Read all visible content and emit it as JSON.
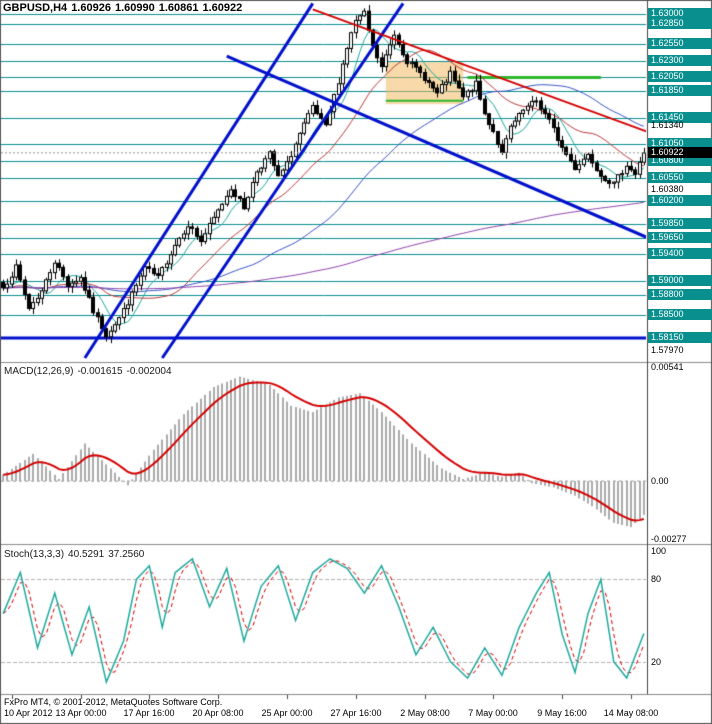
{
  "footer": {
    "text": "FxPro MT4, © 2001-2012, MetaQuotes Software Corp."
  },
  "chart_data": {
    "type": "candlestick",
    "title": "GBPUSD,H4",
    "symbol": "GBPUSD",
    "timeframe": "H4",
    "quote": {
      "open": "1.60926",
      "high": "1.60990",
      "low": "1.60861",
      "close": "1.60922"
    },
    "bid": {
      "label": "1.60922",
      "value": 1.60922
    },
    "num_candles": 150,
    "price_axis": {
      "min": 1.5782,
      "max": 1.6318
    },
    "close_anchors": [
      [
        0,
        1.589
      ],
      [
        3,
        1.592
      ],
      [
        6,
        1.586
      ],
      [
        9,
        1.5885
      ],
      [
        12,
        1.593
      ],
      [
        15,
        1.5895
      ],
      [
        18,
        1.5905
      ],
      [
        21,
        1.5855
      ],
      [
        24,
        1.582
      ],
      [
        27,
        1.5845
      ],
      [
        30,
        1.588
      ],
      [
        33,
        1.592
      ],
      [
        36,
        1.5905
      ],
      [
        40,
        1.5955
      ],
      [
        43,
        1.5985
      ],
      [
        46,
        1.596
      ],
      [
        50,
        1.6005
      ],
      [
        53,
        1.604
      ],
      [
        56,
        1.601
      ],
      [
        59,
        1.6065
      ],
      [
        62,
        1.609
      ],
      [
        64,
        1.6055
      ],
      [
        66,
        1.6075
      ],
      [
        69,
        1.612
      ],
      [
        72,
        1.616
      ],
      [
        75,
        1.613
      ],
      [
        78,
        1.62
      ],
      [
        80,
        1.625
      ],
      [
        82,
        1.629
      ],
      [
        84,
        1.63
      ],
      [
        86,
        1.625
      ],
      [
        88,
        1.622
      ],
      [
        91,
        1.627
      ],
      [
        94,
        1.623
      ],
      [
        98,
        1.6205
      ],
      [
        101,
        1.618
      ],
      [
        104,
        1.621
      ],
      [
        107,
        1.6175
      ],
      [
        110,
        1.6195
      ],
      [
        112,
        1.615
      ],
      [
        114,
        1.6125
      ],
      [
        116,
        1.609
      ],
      [
        118,
        1.613
      ],
      [
        121,
        1.6155
      ],
      [
        124,
        1.617
      ],
      [
        127,
        1.614
      ],
      [
        130,
        1.61
      ],
      [
        133,
        1.607
      ],
      [
        136,
        1.609
      ],
      [
        139,
        1.606
      ],
      [
        142,
        1.6045
      ],
      [
        145,
        1.6075
      ],
      [
        147,
        1.606
      ],
      [
        149,
        1.6092
      ]
    ],
    "close_noise": 0.00045,
    "wick_noise": 0.0009,
    "seed": 7,
    "moving_averages": [
      {
        "period": 7,
        "color": "#1fa99e"
      },
      {
        "period": 21,
        "color": "#c03a3a"
      },
      {
        "period": 55,
        "color": "#3a55c8"
      },
      {
        "period": 200,
        "color": "#8e44ad"
      }
    ],
    "levels": {
      "teal": [
        1.63,
        1.6285,
        1.6255,
        1.623,
        1.6205,
        1.6185,
        1.6145,
        1.6105,
        1.608,
        1.6055,
        1.602,
        1.5985,
        1.5965,
        1.594,
        1.59,
        1.588,
        1.585
      ],
      "blue_support": 1.5815
    },
    "badges": [
      {
        "label": "1.63000",
        "value": 1.63
      },
      {
        "label": "1.62850",
        "value": 1.6285
      },
      {
        "label": "1.62550",
        "value": 1.6255
      },
      {
        "label": "1.62300",
        "value": 1.623
      },
      {
        "label": "1.62050",
        "value": 1.6205
      },
      {
        "label": "1.61850",
        "value": 1.6185
      },
      {
        "label": "1.61450",
        "value": 1.6145
      },
      {
        "label": "1.61050",
        "value": 1.6105
      },
      {
        "label": "1.60800",
        "value": 1.608
      },
      {
        "label": "1.60550",
        "value": 1.6055
      },
      {
        "label": "1.60200",
        "value": 1.602
      },
      {
        "label": "1.59850",
        "value": 1.5985
      },
      {
        "label": "1.59650",
        "value": 1.5965
      },
      {
        "label": "1.59400",
        "value": 1.594
      },
      {
        "label": "1.59000",
        "value": 1.59
      },
      {
        "label": "1.58800",
        "value": 1.588
      },
      {
        "label": "1.58500",
        "value": 1.585
      },
      {
        "label": "1.58150",
        "value": 1.5815
      }
    ],
    "plain_axis_labels": [
      {
        "label": "1.61340",
        "value": 1.6134
      },
      {
        "label": "1.60380",
        "value": 1.6038
      },
      {
        "label": "1.57970",
        "value": 1.5797
      }
    ],
    "trendlines": [
      {
        "name": "ascending-channel-lower",
        "i1": 19,
        "p1": 1.5785,
        "i2": 72,
        "p2": 1.6316,
        "color": "#0010cc",
        "width": 3
      },
      {
        "name": "ascending-channel-upper",
        "i1": 37,
        "p1": 1.5785,
        "i2": 93,
        "p2": 1.6316,
        "color": "#0010cc",
        "width": 3
      },
      {
        "name": "descending-blue-line",
        "i1": 52,
        "p1": 1.6237,
        "i2": 151,
        "p2": 1.5962,
        "color": "#0010cc",
        "width": 3
      },
      {
        "name": "descending-red-trendline",
        "i1": 72,
        "p1": 1.6307,
        "i2": 151,
        "p2": 1.6121,
        "color": "#d40000",
        "width": 2
      }
    ],
    "green_segments": [
      {
        "value": 1.6205,
        "i1": 108,
        "i2": 139,
        "width": 3
      },
      {
        "value": 1.617,
        "i1": 89,
        "i2": 107,
        "width": 2
      }
    ],
    "rect_zone": {
      "i1": 89,
      "i2": 107,
      "p1": 1.6165,
      "p2": 1.6228
    },
    "x_axis": {
      "tick_indices": [
        2,
        18,
        34,
        50,
        66,
        82,
        98,
        114,
        130,
        146
      ],
      "labels": [
        "10 Apr 2012",
        "13 Apr 00:00",
        "17 Apr 16:00",
        "20 Apr 08:00",
        "25 Apr 00:00",
        "27 Apr 16:00",
        "2 May 08:00",
        "7 May 00:00",
        "9 May 16:00",
        "14 May 08:00"
      ]
    },
    "macd": {
      "label": "MACD(12,26,9)",
      "value": "-0.001615",
      "signal_value": "-0.002004",
      "scale": {
        "top": "0.00541",
        "zero": "0.00",
        "bottom": "-0.00277"
      },
      "v_max": 0.00541,
      "v_min": -0.00277,
      "signal_period": 9,
      "anchors": [
        [
          0,
          0.0003
        ],
        [
          7,
          0.0013
        ],
        [
          13,
          0.0001
        ],
        [
          19,
          0.0018
        ],
        [
          23,
          0.001
        ],
        [
          29,
          -0.0002
        ],
        [
          35,
          0.0015
        ],
        [
          42,
          0.0032
        ],
        [
          49,
          0.0045
        ],
        [
          55,
          0.005
        ],
        [
          62,
          0.0046
        ],
        [
          67,
          0.0036
        ],
        [
          72,
          0.0033
        ],
        [
          78,
          0.004
        ],
        [
          83,
          0.0042
        ],
        [
          88,
          0.0033
        ],
        [
          95,
          0.0018
        ],
        [
          102,
          0.0006
        ],
        [
          107,
          0.0001
        ],
        [
          112,
          0.0004
        ],
        [
          116,
          0.0002
        ],
        [
          120,
          0.0004
        ],
        [
          123,
          -0.0001
        ],
        [
          128,
          -0.0003
        ],
        [
          133,
          -0.0007
        ],
        [
          137,
          -0.0012
        ],
        [
          142,
          -0.002
        ],
        [
          146,
          -0.0022
        ],
        [
          149,
          -0.001615
        ]
      ]
    },
    "stoch": {
      "label": "Stoch(13,3,3)",
      "value": "40.5291",
      "signal_value": "37.2560",
      "scale": {
        "top": "100",
        "upper": "80",
        "lower": "20"
      },
      "levels": [
        80,
        20
      ],
      "signal_period": 3,
      "anchors": [
        [
          0,
          55
        ],
        [
          4,
          85
        ],
        [
          8,
          30
        ],
        [
          12,
          70
        ],
        [
          16,
          25
        ],
        [
          20,
          60
        ],
        [
          24,
          5
        ],
        [
          28,
          35
        ],
        [
          31,
          80
        ],
        [
          34,
          90
        ],
        [
          37,
          45
        ],
        [
          40,
          85
        ],
        [
          44,
          95
        ],
        [
          48,
          60
        ],
        [
          52,
          88
        ],
        [
          56,
          35
        ],
        [
          60,
          75
        ],
        [
          64,
          90
        ],
        [
          68,
          50
        ],
        [
          72,
          85
        ],
        [
          76,
          95
        ],
        [
          80,
          88
        ],
        [
          84,
          70
        ],
        [
          88,
          90
        ],
        [
          92,
          60
        ],
        [
          96,
          25
        ],
        [
          100,
          45
        ],
        [
          104,
          20
        ],
        [
          108,
          8
        ],
        [
          112,
          30
        ],
        [
          116,
          10
        ],
        [
          120,
          45
        ],
        [
          124,
          70
        ],
        [
          127,
          85
        ],
        [
          130,
          40
        ],
        [
          133,
          12
        ],
        [
          136,
          55
        ],
        [
          139,
          80
        ],
        [
          142,
          20
        ],
        [
          145,
          8
        ],
        [
          149,
          40.5
        ]
      ]
    },
    "colors": {
      "level": "#0a8f8f",
      "blue_line": "#0010cc",
      "green_line": "#2eb82e",
      "zone_fill": "rgba(240,185,100,0.55)",
      "macd_bar": "#ababab",
      "macd_signal": "#d40000",
      "stoch_k": "#1fa99e",
      "stoch_d": "#d40000",
      "candle_up": "#ffffff",
      "candle_down": "#000000",
      "badge_bg": "#0a8f8f",
      "badge_text": "#ffffff",
      "bid_badge_bg": "#000000"
    }
  }
}
